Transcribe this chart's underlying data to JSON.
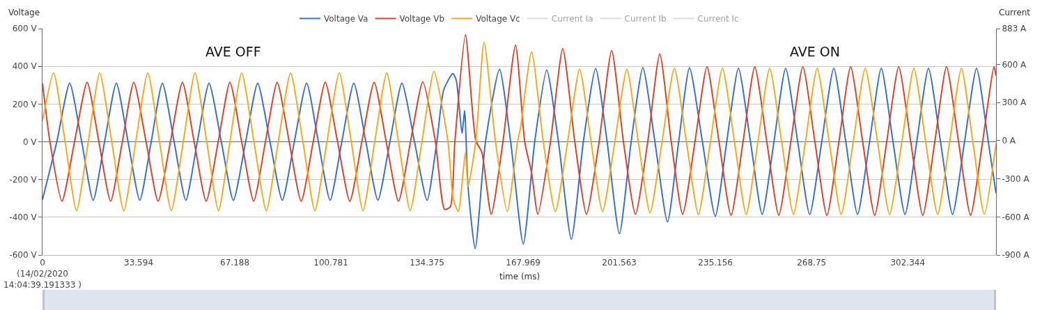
{
  "chart_data": {
    "type": "line",
    "xlabel": "time (ms)",
    "ylabel": "Voltage",
    "y2label": "Current",
    "annotations": [
      "AVE OFF",
      "AVE ON"
    ],
    "xlim": [
      0,
      333.2
    ],
    "xticks": [
      {
        "value": 0,
        "label": "0\n(14/02/2020\n14:04:39.191333 )"
      },
      33.594,
      67.188,
      100.781,
      134.375,
      167.969,
      201.563,
      235.156,
      268.75,
      302.344
    ],
    "ylim": [
      -600,
      600
    ],
    "yticks": [
      {
        "value": -600,
        "label": "-600 V"
      },
      {
        "value": -400,
        "label": "-400 V"
      },
      {
        "value": -200,
        "label": "-200 V"
      },
      {
        "value": 0,
        "label": "0 V"
      },
      {
        "value": 200,
        "label": "200 V"
      },
      {
        "value": 400,
        "label": "400 V"
      },
      {
        "value": 600,
        "label": "600 V"
      }
    ],
    "y2lim": [
      -900,
      883
    ],
    "y2ticks": [
      {
        "value": -900,
        "label": "-900 A"
      },
      {
        "value": -600,
        "label": "-600 A"
      },
      {
        "value": -300,
        "label": "-300 A"
      },
      {
        "value": 0,
        "label": "0 A"
      },
      {
        "value": 300,
        "label": "300 A"
      },
      {
        "value": 600,
        "label": "600 A"
      },
      {
        "value": 883,
        "label": "883 A"
      }
    ],
    "grid": "y",
    "legend": "top",
    "line_style": "solid",
    "series": [
      {
        "name": "Voltage Va",
        "color": "#3a6fc6",
        "x": [
          0,
          5.0,
          9.5,
          13.7,
          17.7,
          21.7,
          25.8,
          29.9,
          34.0,
          38.0,
          41.9,
          46.0,
          50.1,
          54.1,
          58.2,
          62.5,
          66.7,
          71.0,
          75.2,
          79.5,
          83.8,
          88.0,
          92.3,
          96.4,
          100.5,
          104.6,
          108.8,
          113.0,
          117.2,
          121.4,
          125.6,
          130.0,
          134.4,
          137.8,
          140.2,
          143.4,
          144.6,
          146.6,
          147.5,
          148.7,
          151.2,
          154.8,
          159.7,
          163.6,
          168.0,
          172.0,
          176.2,
          180.3,
          184.8,
          189.0,
          193.3,
          197.3,
          201.6,
          205.7,
          209.8,
          214.0,
          218.4,
          222.3,
          226.1,
          230.6,
          235.1,
          239.1,
          243.2,
          247.4,
          251.5,
          255.6,
          259.7,
          263.9,
          268.1,
          272.3,
          276.5,
          280.7,
          284.8,
          289.0,
          293.1,
          297.2,
          301.4,
          305.5,
          309.6,
          313.8,
          318.0,
          322.2,
          326.4,
          330.5,
          333.2
        ],
        "values": [
          -307,
          0,
          310,
          0,
          -310,
          0,
          310,
          0,
          -310,
          0,
          310,
          0,
          -310,
          0,
          310,
          0,
          -310,
          0,
          310,
          0,
          -310,
          0,
          310,
          0,
          -310,
          0,
          310,
          0,
          -310,
          0,
          310,
          0,
          -310,
          0,
          275,
          362,
          325,
          44,
          165,
          -238,
          -567,
          0,
          384,
          0,
          -542,
          0,
          380,
          0,
          -517,
          0,
          388,
          0,
          -487,
          0,
          392,
          0,
          -425,
          0,
          392,
          0,
          -395,
          0,
          390,
          0,
          -385,
          0,
          390,
          0,
          -385,
          0,
          390,
          0,
          -385,
          0,
          390,
          0,
          -385,
          0,
          390,
          0,
          -385,
          0,
          390,
          0,
          -273
        ]
      },
      {
        "name": "Voltage Vb",
        "color": "#d8432b",
        "x": [
          0,
          2.6,
          6.8,
          11.2,
          15.6,
          19.7,
          23.8,
          27.9,
          31.9,
          36.2,
          40.4,
          44.7,
          48.9,
          53.0,
          57.2,
          61.4,
          65.5,
          69.6,
          73.8,
          77.9,
          82.0,
          86.2,
          90.4,
          94.6,
          98.8,
          103.1,
          107.4,
          111.6,
          115.9,
          120.1,
          124.4,
          128.6,
          132.9,
          137.3,
          140.5,
          142.5,
          144.1,
          147.8,
          151.4,
          153.5,
          156.8,
          160.9,
          165.3,
          168.5,
          170.9,
          173.1,
          177.5,
          181.8,
          186.0,
          190.1,
          194.5,
          198.9,
          203.0,
          207.2,
          211.5,
          215.7,
          219.7,
          223.7,
          228.0,
          232.2,
          236.4,
          240.6,
          244.8,
          248.9,
          253.1,
          257.3,
          261.5,
          265.7,
          269.9,
          274.1,
          278.3,
          282.4,
          286.6,
          290.8,
          295.0,
          299.2,
          303.4,
          307.6,
          311.8,
          315.9,
          320.1,
          324.3,
          328.5,
          332.5,
          333.2
        ],
        "values": [
          310,
          0,
          -315,
          0,
          315,
          0,
          -315,
          0,
          315,
          0,
          -315,
          0,
          315,
          0,
          -315,
          0,
          315,
          0,
          -315,
          0,
          315,
          0,
          -315,
          0,
          315,
          0,
          -315,
          0,
          315,
          0,
          -315,
          0,
          318,
          0,
          -358,
          -345,
          0,
          567,
          7,
          -55,
          -384,
          0,
          512,
          0,
          -165,
          -384,
          0,
          494,
          0,
          -384,
          0,
          483,
          0,
          -384,
          0,
          465,
          0,
          -384,
          0,
          398,
          0,
          -390,
          0,
          398,
          0,
          -390,
          0,
          398,
          0,
          -390,
          0,
          398,
          0,
          -390,
          0,
          398,
          0,
          -390,
          0,
          398,
          0,
          -390,
          0,
          398,
          350
        ]
      },
      {
        "name": "Voltage Vc",
        "color": "#f4a81f",
        "x": [
          0,
          3.9,
          7.9,
          11.9,
          16.0,
          20.0,
          24.2,
          28.4,
          32.6,
          36.8,
          40.9,
          45.0,
          49.2,
          53.3,
          57.4,
          61.5,
          65.5,
          69.6,
          73.9,
          78.2,
          82.4,
          86.7,
          91.0,
          95.2,
          99.4,
          103.7,
          107.9,
          112.0,
          116.1,
          120.3,
          124.4,
          128.5,
          132.6,
          136.8,
          141.7,
          143.5,
          145.3,
          147.8,
          148.7,
          151.4,
          154.3,
          158.3,
          162.4,
          166.0,
          167.0,
          170.9,
          175.0,
          179.2,
          183.5,
          187.7,
          191.7,
          195.7,
          200.0,
          204.2,
          208.2,
          212.3,
          216.5,
          220.8,
          225.0,
          229.2,
          233.4,
          237.6,
          241.8,
          245.9,
          250.0,
          254.1,
          258.3,
          262.4,
          266.6,
          270.7,
          274.9,
          279.1,
          283.3,
          287.5,
          291.8,
          296.0,
          300.3,
          304.5,
          308.6,
          312.8,
          317.0,
          321.1,
          325.1,
          329.1,
          333.2
        ],
        "values": [
          110,
          365,
          0,
          -365,
          0,
          365,
          0,
          -365,
          0,
          365,
          0,
          -365,
          0,
          365,
          0,
          -365,
          0,
          365,
          0,
          -365,
          0,
          365,
          0,
          -365,
          0,
          365,
          0,
          -365,
          0,
          365,
          0,
          -365,
          0,
          373,
          0,
          -300,
          -370,
          -55,
          -237,
          0,
          527,
          0,
          -370,
          0,
          70,
          476,
          0,
          -370,
          0,
          384,
          0,
          -370,
          0,
          384,
          0,
          -377,
          0,
          390,
          0,
          -385,
          0,
          390,
          0,
          -385,
          0,
          390,
          0,
          -385,
          0,
          390,
          0,
          -385,
          0,
          390,
          0,
          -385,
          0,
          390,
          0,
          -385,
          0,
          390,
          0,
          -384,
          -10
        ]
      },
      {
        "name": "Current Ia"
      },
      {
        "name": "Current Ib"
      },
      {
        "name": "Current Ic"
      }
    ]
  }
}
